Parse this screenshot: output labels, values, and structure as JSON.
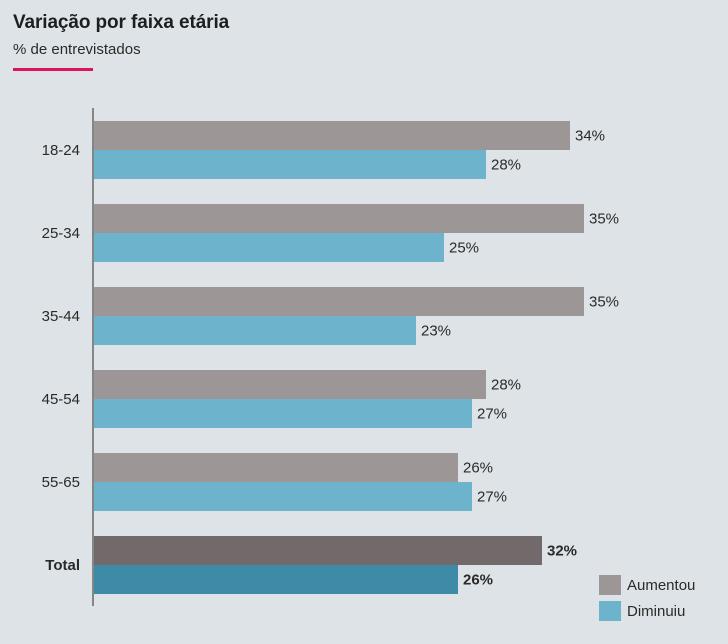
{
  "title": "Variação por faixa etária",
  "subtitle": "% de entrevistados",
  "colors": {
    "accent": "#e0115f",
    "aumentou": "#9c9697",
    "diminuiu": "#6db3cb",
    "aumentou_total": "#726a6a",
    "diminuiu_total": "#3e8ba7",
    "axis": "#555555",
    "background": "#dde3e6"
  },
  "chart_data": {
    "type": "bar",
    "orientation": "horizontal",
    "categories": [
      "18-24",
      "25-34",
      "35-44",
      "45-54",
      "55-65",
      "Total"
    ],
    "series": [
      {
        "name": "Aumentou",
        "values": [
          34,
          35,
          35,
          28,
          26,
          32
        ]
      },
      {
        "name": "Diminuiu",
        "values": [
          28,
          25,
          23,
          27,
          27,
          26
        ]
      }
    ],
    "value_suffix": "%",
    "emphasized_category": "Total",
    "xlim": [
      0,
      40
    ],
    "grid": false,
    "legend_position": "bottom-right"
  }
}
